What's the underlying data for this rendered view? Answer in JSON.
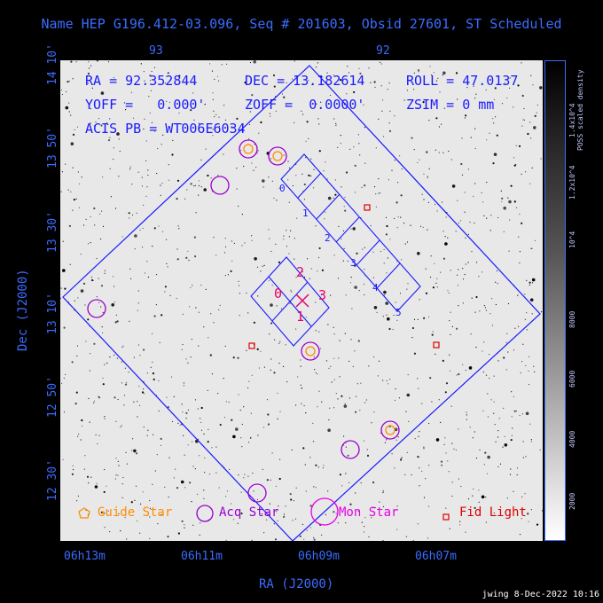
{
  "title": "Name HEP G196.412-03.096, Seq # 201603, Obsid 27601, ST Scheduled",
  "info": {
    "ra": "RA = 92.352844",
    "dec": "DEC = 13.182614",
    "roll": "ROLL = 47.0137",
    "yoff": "YOFF =   0.000'",
    "zoff": "ZOFF =  0.0000'",
    "zsim": "ZSIM = 0 mm",
    "acis": "ACIS PB = WT006E6034"
  },
  "axes": {
    "xlabel": "RA (J2000)",
    "ylabel": "Dec (J2000)",
    "xticks": [
      "06h13m",
      "06h11m",
      "06h09m",
      "06h07m"
    ],
    "top_ticks": [
      "93",
      "92"
    ],
    "yticks": [
      "14 10'",
      "13 50'",
      "13 30'",
      "13 10'",
      "12 50'",
      "12 30'"
    ]
  },
  "colorbar": {
    "label": "POSS scaled density",
    "ticks": [
      "2000",
      "4000",
      "6000",
      "8000",
      "10^4",
      "1.2x10^4",
      "1.4x10^4"
    ]
  },
  "ccds": {
    "imaging": [
      "0",
      "1",
      "2",
      "3"
    ],
    "spectro": [
      "0",
      "1",
      "2",
      "3",
      "4",
      "5"
    ]
  },
  "legend": {
    "guide": "Guide Star",
    "acq": "Acq Star",
    "mon": "Mon Star",
    "fid": "Fid Light"
  },
  "colors": {
    "axes": "#3b6cff",
    "field": "#1a1aff",
    "guide": "#ff8c00",
    "acq": "#9900cc",
    "mon": "#e600e6",
    "fid": "#dd0000"
  },
  "footer": "jwing  8-Dec-2022 10:16"
}
